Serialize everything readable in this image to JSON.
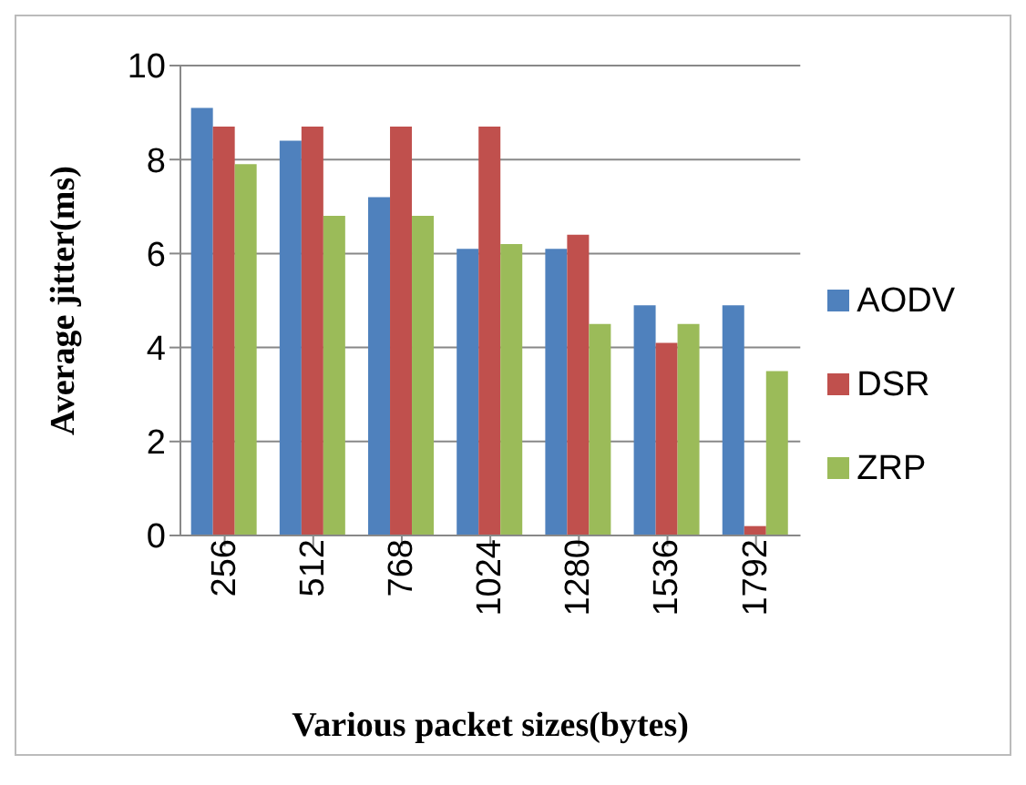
{
  "chart_data": {
    "type": "bar",
    "xlabel": "Various  packet sizes(bytes)",
    "ylabel": "Average jitter(ms)",
    "categories": [
      "256",
      "512",
      "768",
      "1024",
      "1280",
      "1536",
      "1792"
    ],
    "series": [
      {
        "name": "AODV",
        "color": "#4f81bd",
        "values": [
          9.1,
          8.4,
          7.2,
          6.1,
          6.1,
          4.9,
          4.9
        ]
      },
      {
        "name": "DSR",
        "color": "#c0504d",
        "values": [
          8.7,
          8.7,
          8.7,
          8.7,
          6.4,
          4.1,
          0.2
        ]
      },
      {
        "name": "ZRP",
        "color": "#9bbb59",
        "values": [
          7.9,
          6.8,
          6.8,
          6.2,
          4.5,
          4.5,
          3.5
        ]
      }
    ],
    "ylim": [
      0,
      10
    ],
    "yticks": [
      0,
      2,
      4,
      6,
      8,
      10
    ],
    "grid": "y",
    "legend": "right"
  }
}
